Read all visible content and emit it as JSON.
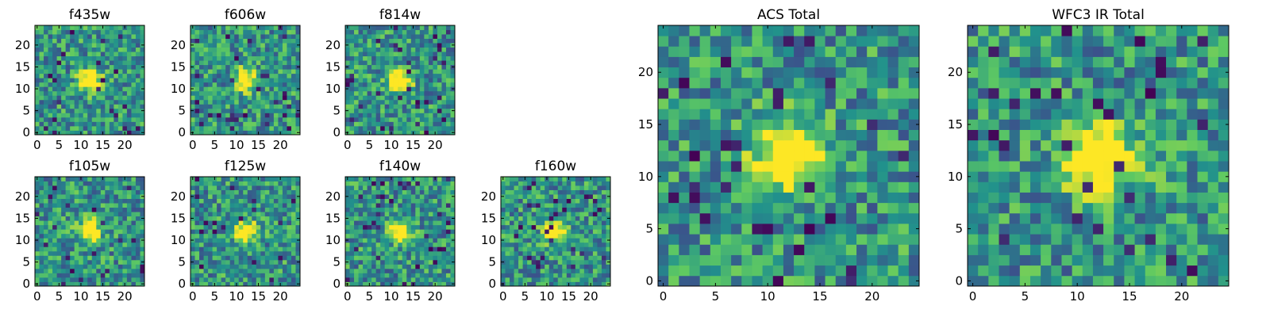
{
  "figure": {
    "colormap": "viridis",
    "colormap_stops": [
      "#440154",
      "#3b528b",
      "#21918c",
      "#5ec962",
      "#fde725"
    ],
    "axis_color": "#000000",
    "background": "#ffffff"
  },
  "chart_data": [
    {
      "type": "heatmap",
      "title": "f435w",
      "grid_size": [
        25,
        25
      ],
      "xlim": [
        0,
        24
      ],
      "ylim": [
        0,
        24
      ],
      "x_ticks": [
        "0",
        "5",
        "10",
        "15",
        "20"
      ],
      "y_ticks": [
        "0",
        "5",
        "10",
        "15",
        "20"
      ],
      "grid": false,
      "peak": {
        "x": 12,
        "y": 12
      }
    },
    {
      "type": "heatmap",
      "title": "f606w",
      "grid_size": [
        25,
        25
      ],
      "xlim": [
        0,
        24
      ],
      "ylim": [
        0,
        24
      ],
      "x_ticks": [
        "0",
        "5",
        "10",
        "15",
        "20"
      ],
      "y_ticks": [
        "0",
        "5",
        "10",
        "15",
        "20"
      ],
      "grid": false,
      "peak": {
        "x": 12,
        "y": 12
      }
    },
    {
      "type": "heatmap",
      "title": "f814w",
      "grid_size": [
        25,
        25
      ],
      "xlim": [
        0,
        24
      ],
      "ylim": [
        0,
        24
      ],
      "x_ticks": [
        "0",
        "5",
        "10",
        "15",
        "20"
      ],
      "y_ticks": [
        "0",
        "5",
        "10",
        "15",
        "20"
      ],
      "grid": false,
      "peak": {
        "x": 12,
        "y": 12
      }
    },
    {
      "type": "heatmap",
      "title": "f105w",
      "grid_size": [
        25,
        25
      ],
      "xlim": [
        0,
        24
      ],
      "ylim": [
        0,
        24
      ],
      "x_ticks": [
        "0",
        "5",
        "10",
        "15",
        "20"
      ],
      "y_ticks": [
        "0",
        "5",
        "10",
        "15",
        "20"
      ],
      "grid": false,
      "peak": {
        "x": 12,
        "y": 12
      }
    },
    {
      "type": "heatmap",
      "title": "f125w",
      "grid_size": [
        25,
        25
      ],
      "xlim": [
        0,
        24
      ],
      "ylim": [
        0,
        24
      ],
      "x_ticks": [
        "0",
        "5",
        "10",
        "15",
        "20"
      ],
      "y_ticks": [
        "0",
        "5",
        "10",
        "15",
        "20"
      ],
      "grid": false,
      "peak": {
        "x": 12,
        "y": 12
      }
    },
    {
      "type": "heatmap",
      "title": "f140w",
      "grid_size": [
        25,
        25
      ],
      "xlim": [
        0,
        24
      ],
      "ylim": [
        0,
        24
      ],
      "x_ticks": [
        "0",
        "5",
        "10",
        "15",
        "20"
      ],
      "y_ticks": [
        "0",
        "5",
        "10",
        "15",
        "20"
      ],
      "grid": false,
      "peak": {
        "x": 12,
        "y": 12
      }
    },
    {
      "type": "heatmap",
      "title": "f160w",
      "grid_size": [
        25,
        25
      ],
      "xlim": [
        0,
        24
      ],
      "ylim": [
        0,
        24
      ],
      "x_ticks": [
        "0",
        "5",
        "10",
        "15",
        "20"
      ],
      "y_ticks": [
        "0",
        "5",
        "10",
        "15",
        "20"
      ],
      "grid": false,
      "peak": {
        "x": 12,
        "y": 12
      }
    },
    {
      "type": "heatmap",
      "title": "ACS Total",
      "grid_size": [
        25,
        25
      ],
      "xlim": [
        0,
        24
      ],
      "ylim": [
        0,
        24
      ],
      "x_ticks": [
        "0",
        "5",
        "10",
        "15",
        "20"
      ],
      "y_ticks": [
        "0",
        "5",
        "10",
        "15",
        "20"
      ],
      "grid": false,
      "peak": {
        "x": 12,
        "y": 12
      }
    },
    {
      "type": "heatmap",
      "title": "WFC3 IR Total",
      "grid_size": [
        25,
        25
      ],
      "xlim": [
        0,
        24
      ],
      "ylim": [
        0,
        24
      ],
      "x_ticks": [
        "0",
        "5",
        "10",
        "15",
        "20"
      ],
      "y_ticks": [
        "0",
        "5",
        "10",
        "15",
        "20"
      ],
      "grid": false,
      "peak": {
        "x": 12,
        "y": 12
      }
    }
  ]
}
